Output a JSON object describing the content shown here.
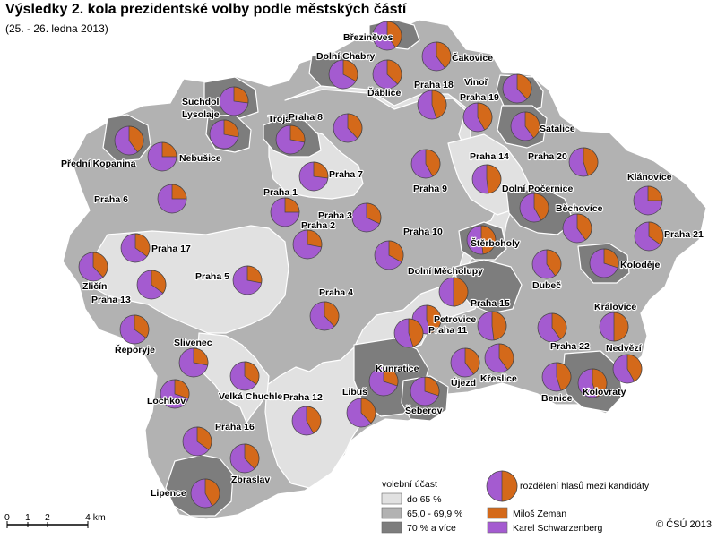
{
  "title": "Výsledky 2. kola prezidentské volby podle městských částí",
  "subtitle": "(25. - 26. ledna 2013)",
  "colors": {
    "zeman": "#d4691a",
    "schwarzenberg": "#a45bd0",
    "turnout_low": "#e1e1e1",
    "turnout_mid": "#b2b2b2",
    "turnout_high": "#7d7d7d"
  },
  "legend": {
    "turnout_title": "volební účast",
    "turnout_classes": [
      "do 65 %",
      "65,0 - 69,9 %",
      "70 % a více"
    ],
    "pie_title": "rozdělení hlasů mezi kandidáty",
    "candidates": [
      "Miloš Zeman",
      "Karel Schwarzenberg"
    ]
  },
  "scalebar": {
    "ticks": [
      "0",
      "1",
      "2",
      "4 km"
    ]
  },
  "copyright": "© ČSÚ 2013",
  "districts": [
    {
      "name": "Březiněves",
      "zeman": 40
    },
    {
      "name": "Dolní Chabry",
      "zeman": 33
    },
    {
      "name": "Čakovice",
      "zeman": 40
    },
    {
      "name": "Ďáblice",
      "zeman": 37
    },
    {
      "name": "Vinoř",
      "zeman": 38
    },
    {
      "name": "Praha 18",
      "zeman": 45
    },
    {
      "name": "Praha 19",
      "zeman": 42
    },
    {
      "name": "Suchdol",
      "zeman": 27
    },
    {
      "name": "Lysolaje",
      "zeman": 28
    },
    {
      "name": "Troja",
      "zeman": 28
    },
    {
      "name": "Praha 8",
      "zeman": 38
    },
    {
      "name": "Satalice",
      "zeman": 40
    },
    {
      "name": "Přední Kopanina",
      "zeman": 40
    },
    {
      "name": "Nebušice",
      "zeman": 25
    },
    {
      "name": "Praha 7",
      "zeman": 27
    },
    {
      "name": "Praha 9",
      "zeman": 42
    },
    {
      "name": "Praha 14",
      "zeman": 48
    },
    {
      "name": "Praha 20",
      "zeman": 45
    },
    {
      "name": "Klánovice",
      "zeman": 25
    },
    {
      "name": "Praha 6",
      "zeman": 25
    },
    {
      "name": "Praha 1",
      "zeman": 25
    },
    {
      "name": "Dolní Počernice",
      "zeman": 42
    },
    {
      "name": "Praha 3",
      "zeman": 32
    },
    {
      "name": "Praha 2",
      "zeman": 28
    },
    {
      "name": "Běchovice",
      "zeman": 40
    },
    {
      "name": "Praha 21",
      "zeman": 35
    },
    {
      "name": "Praha 10",
      "zeman": 33
    },
    {
      "name": "Štěrboholy",
      "zeman": 48
    },
    {
      "name": "Praha 17",
      "zeman": 35
    },
    {
      "name": "Zličín",
      "zeman": 38
    },
    {
      "name": "Praha 5",
      "zeman": 28
    },
    {
      "name": "Praha 13",
      "zeman": 35
    },
    {
      "name": "Dolní Měcholupy",
      "zeman": 50
    },
    {
      "name": "Koloděje",
      "zeman": 30
    },
    {
      "name": "Dubeč",
      "zeman": 40
    },
    {
      "name": "Praha 4",
      "zeman": 38
    },
    {
      "name": "Praha 15",
      "zeman": 48
    },
    {
      "name": "Královice",
      "zeman": 50
    },
    {
      "name": "Petrovice",
      "zeman": 45
    },
    {
      "name": "Praha 11",
      "zeman": 45
    },
    {
      "name": "Řeporyje",
      "zeman": 35
    },
    {
      "name": "Praha 22",
      "zeman": 40
    },
    {
      "name": "Slivenec",
      "zeman": 28
    },
    {
      "name": "Nedvězí",
      "zeman": 42
    },
    {
      "name": "Kunratice",
      "zeman": 30
    },
    {
      "name": "Újezd",
      "zeman": 40
    },
    {
      "name": "Křeslice",
      "zeman": 40
    },
    {
      "name": "Kolovraty",
      "zeman": 45
    },
    {
      "name": "Lochkov",
      "zeman": 30
    },
    {
      "name": "Velká Chuchle",
      "zeman": 35
    },
    {
      "name": "Libuš",
      "zeman": 38
    },
    {
      "name": "Benice",
      "zeman": 45
    },
    {
      "name": "Praha 12",
      "zeman": 42
    },
    {
      "name": "Šeberov",
      "zeman": 30
    },
    {
      "name": "Praha 16",
      "zeman": 35
    },
    {
      "name": "Zbraslav",
      "zeman": 38
    },
    {
      "name": "Lipence",
      "zeman": 42
    }
  ]
}
